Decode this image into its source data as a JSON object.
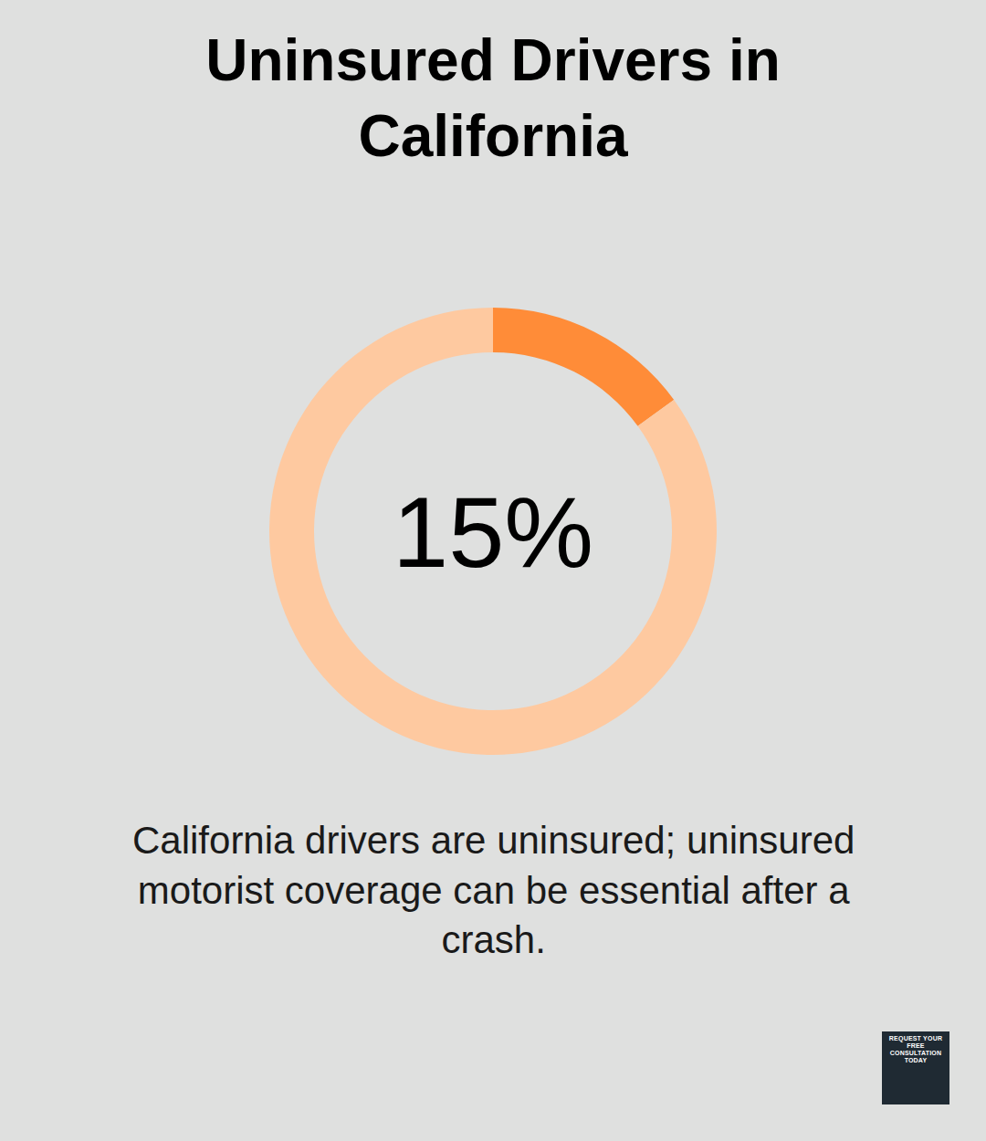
{
  "chart_data": {
    "type": "pie",
    "title": "Uninsured Drivers in California",
    "values": [
      15,
      85
    ],
    "colors": [
      "#ff8c38",
      "#fec9a0"
    ],
    "annotation": "15%",
    "caption": "California drivers are uninsured; uninsured motorist coverage can be essential after a crash."
  },
  "badge": "REQUEST YOUR FREE CONSULTATION TODAY"
}
